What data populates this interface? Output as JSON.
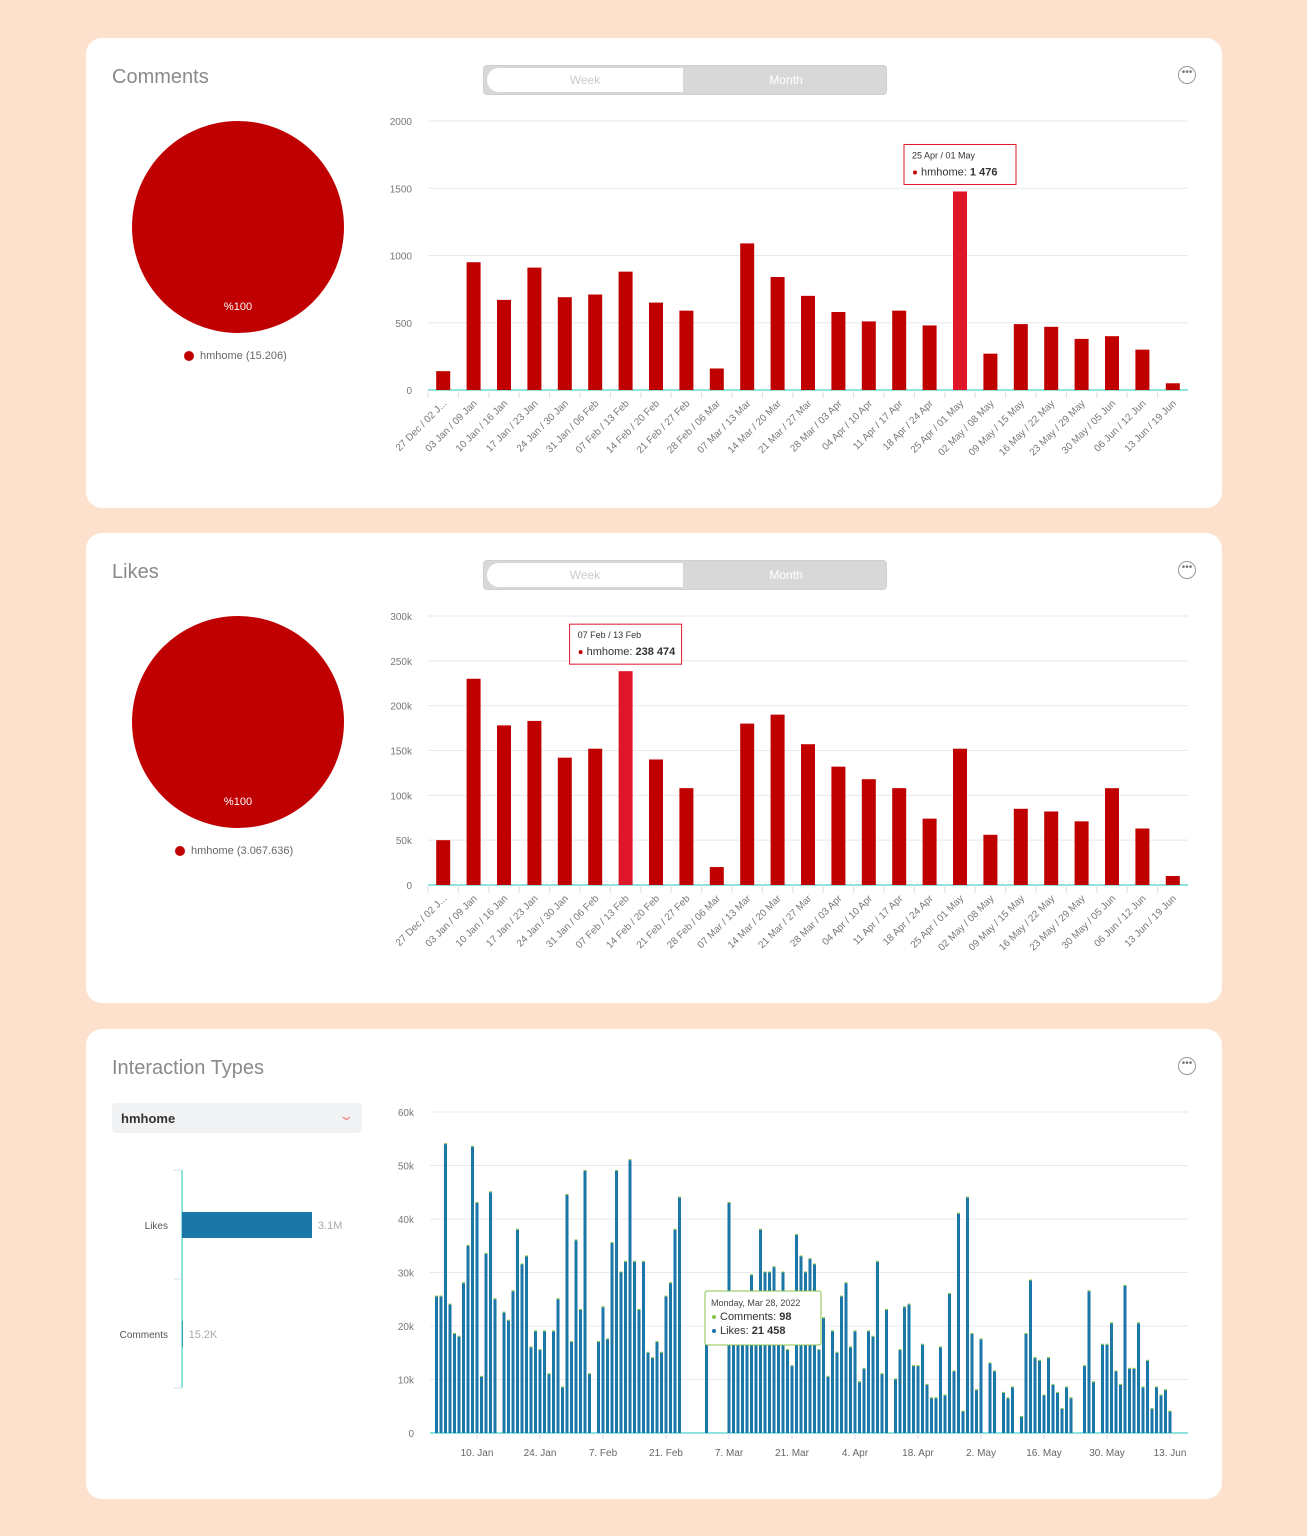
{
  "colors": {
    "bar": "#c00000",
    "highlight": "#e0162b",
    "likes": "#1a77a7",
    "comments": "#8bc34a",
    "axis": "#8ee4dc"
  },
  "comments_card": {
    "title": "Comments",
    "week": "Week",
    "month": "Month",
    "pie_label": "%100",
    "legend": "hmhome (15.206)",
    "more_icon": "more-icon"
  },
  "likes_card": {
    "title": "Likes",
    "week": "Week",
    "month": "Month",
    "pie_label": "%100",
    "legend": "hmhome (3.067.636)",
    "more_icon": "more-icon"
  },
  "interaction_card": {
    "title": "Interaction Types",
    "select_value": "hmhome",
    "more_icon": "more-icon"
  },
  "chart_data": [
    {
      "type": "bar",
      "series": [
        {
          "name": "hmhome",
          "values": [
            140,
            950,
            670,
            910,
            690,
            710,
            880,
            650,
            590,
            160,
            1090,
            840,
            700,
            580,
            510,
            590,
            480,
            1476,
            270,
            490,
            470,
            380,
            400,
            300,
            50
          ]
        }
      ],
      "categories": [
        "27 Dec / 02 J...",
        "03 Jan / 09 Jan",
        "10 Jan / 16 Jan",
        "17 Jan / 23 Jan",
        "24 Jan / 30 Jan",
        "31 Jan / 06 Feb",
        "07 Feb / 13 Feb",
        "14 Feb / 20 Feb",
        "21 Feb / 27 Feb",
        "28 Feb / 06 Mar",
        "07 Mar / 13 Mar",
        "14 Mar / 20 Mar",
        "21 Mar / 27 Mar",
        "28 Mar / 03 Apr",
        "04 Apr / 10 Apr",
        "11 Apr / 17 Apr",
        "18 Apr / 24 Apr",
        "25 Apr / 01 May",
        "02 May / 08 May",
        "09 May / 15 May",
        "16 May / 22 May",
        "23 May / 29 May",
        "30 May / 05 Jun",
        "06 Jun / 12 Jun",
        "13 Jun / 19 Jun"
      ],
      "ylim": [
        0,
        2000
      ],
      "yticks": [
        "0",
        "500",
        "1000",
        "1500",
        "2000"
      ],
      "grid": true,
      "tooltip": {
        "index": 17,
        "title": "25 Apr / 01 May",
        "label": "hmhome:",
        "value": "1 476"
      }
    },
    {
      "type": "bar",
      "series": [
        {
          "name": "hmhome",
          "values": [
            50000,
            230000,
            178000,
            183000,
            142000,
            152000,
            238474,
            140000,
            108000,
            20000,
            180000,
            190000,
            157000,
            132000,
            118000,
            108000,
            74000,
            152000,
            56000,
            85000,
            82000,
            71000,
            108000,
            63000,
            10000
          ]
        }
      ],
      "categories": [
        "27 Dec / 02 J...",
        "03 Jan / 09 Jan",
        "10 Jan / 16 Jan",
        "17 Jan / 23 Jan",
        "24 Jan / 30 Jan",
        "31 Jan / 06 Feb",
        "07 Feb / 13 Feb",
        "14 Feb / 20 Feb",
        "21 Feb / 27 Feb",
        "28 Feb / 06 Mar",
        "07 Mar / 13 Mar",
        "14 Mar / 20 Mar",
        "21 Mar / 27 Mar",
        "28 Mar / 03 Apr",
        "04 Apr / 10 Apr",
        "11 Apr / 17 Apr",
        "18 Apr / 24 Apr",
        "25 Apr / 01 May",
        "02 May / 08 May",
        "09 May / 15 May",
        "16 May / 22 May",
        "23 May / 29 May",
        "30 May / 05 Jun",
        "06 Jun / 12 Jun",
        "13 Jun / 19 Jun"
      ],
      "ylim": [
        0,
        300000
      ],
      "yticks": [
        "0",
        "50k",
        "100k",
        "150k",
        "200k",
        "250k",
        "300k"
      ],
      "grid": true,
      "tooltip": {
        "index": 6,
        "title": "07 Feb / 13 Feb",
        "label": "hmhome:",
        "value": "238 474"
      }
    },
    {
      "type": "bar",
      "orientation": "horizontal",
      "categories": [
        "Likes",
        "Comments"
      ],
      "values": [
        3067636,
        15206
      ],
      "value_labels": [
        "3.1M",
        "15.2K"
      ]
    },
    {
      "type": "bar",
      "x_start": "2022-01-01",
      "x_step": "day",
      "ylim": [
        0,
        60000
      ],
      "yticks": [
        "0",
        "10k",
        "20k",
        "30k",
        "40k",
        "50k",
        "60k"
      ],
      "grid": true,
      "xticks": [
        "10. Jan",
        "24. Jan",
        "7. Feb",
        "21. Feb",
        "7. Mar",
        "21. Mar",
        "4. Apr",
        "18. Apr",
        "2. May",
        "16. May",
        "30. May",
        "13. Jun"
      ],
      "series": [
        {
          "name": "Likes",
          "values": [
            25500,
            25500,
            54000,
            24000,
            18500,
            18000,
            28000,
            35000,
            53500,
            43000,
            10500,
            33500,
            45000,
            25000,
            0,
            22500,
            21000,
            26500,
            38000,
            31500,
            33000,
            16000,
            19000,
            15500,
            19000,
            11000,
            19000,
            25000,
            8500,
            44500,
            17000,
            36000,
            23000,
            49000,
            11000,
            0,
            17000,
            23500,
            17500,
            35500,
            49000,
            30000,
            32000,
            51000,
            32000,
            23000,
            32000,
            15000,
            14000,
            17000,
            15000,
            25500,
            28000,
            38000,
            44000,
            0,
            0,
            0,
            0,
            0,
            16700,
            0,
            0,
            0,
            0,
            43000,
            22000,
            22000,
            20000,
            21000,
            29500,
            20000,
            38000,
            30000,
            30000,
            31000,
            22000,
            30000,
            15500,
            12500,
            37000,
            33000,
            30000,
            32500,
            31500,
            15500,
            21458,
            10500,
            19000,
            15000,
            25500,
            28000,
            16000,
            19000,
            9500,
            12000,
            19000,
            18000,
            32000,
            11000,
            23000,
            0,
            10000,
            15500,
            23500,
            24000,
            12500,
            12500,
            16500,
            9000,
            6500,
            6500,
            16000,
            7000,
            26000,
            11500,
            41000,
            4000,
            44000,
            18500,
            8000,
            17500,
            0,
            13000,
            11500,
            0,
            7500,
            6500,
            8500,
            0,
            3000,
            18500,
            28500,
            14000,
            13500,
            7000,
            14000,
            9000,
            7500,
            4500,
            8500,
            6500,
            0,
            0,
            12500,
            26500,
            9500,
            0,
            16500,
            16500,
            20500,
            11500,
            9000,
            27500,
            12000,
            12000,
            20500,
            8500,
            13500,
            4500,
            8500,
            7000,
            8000,
            4000
          ]
        },
        {
          "name": "Comments"
        }
      ],
      "tooltip": {
        "index": 86,
        "title": "Monday, Mar 28, 2022",
        "rows": [
          {
            "label": "Comments:",
            "value": "98"
          },
          {
            "label": "Likes:",
            "value": "21 458"
          }
        ]
      }
    }
  ]
}
